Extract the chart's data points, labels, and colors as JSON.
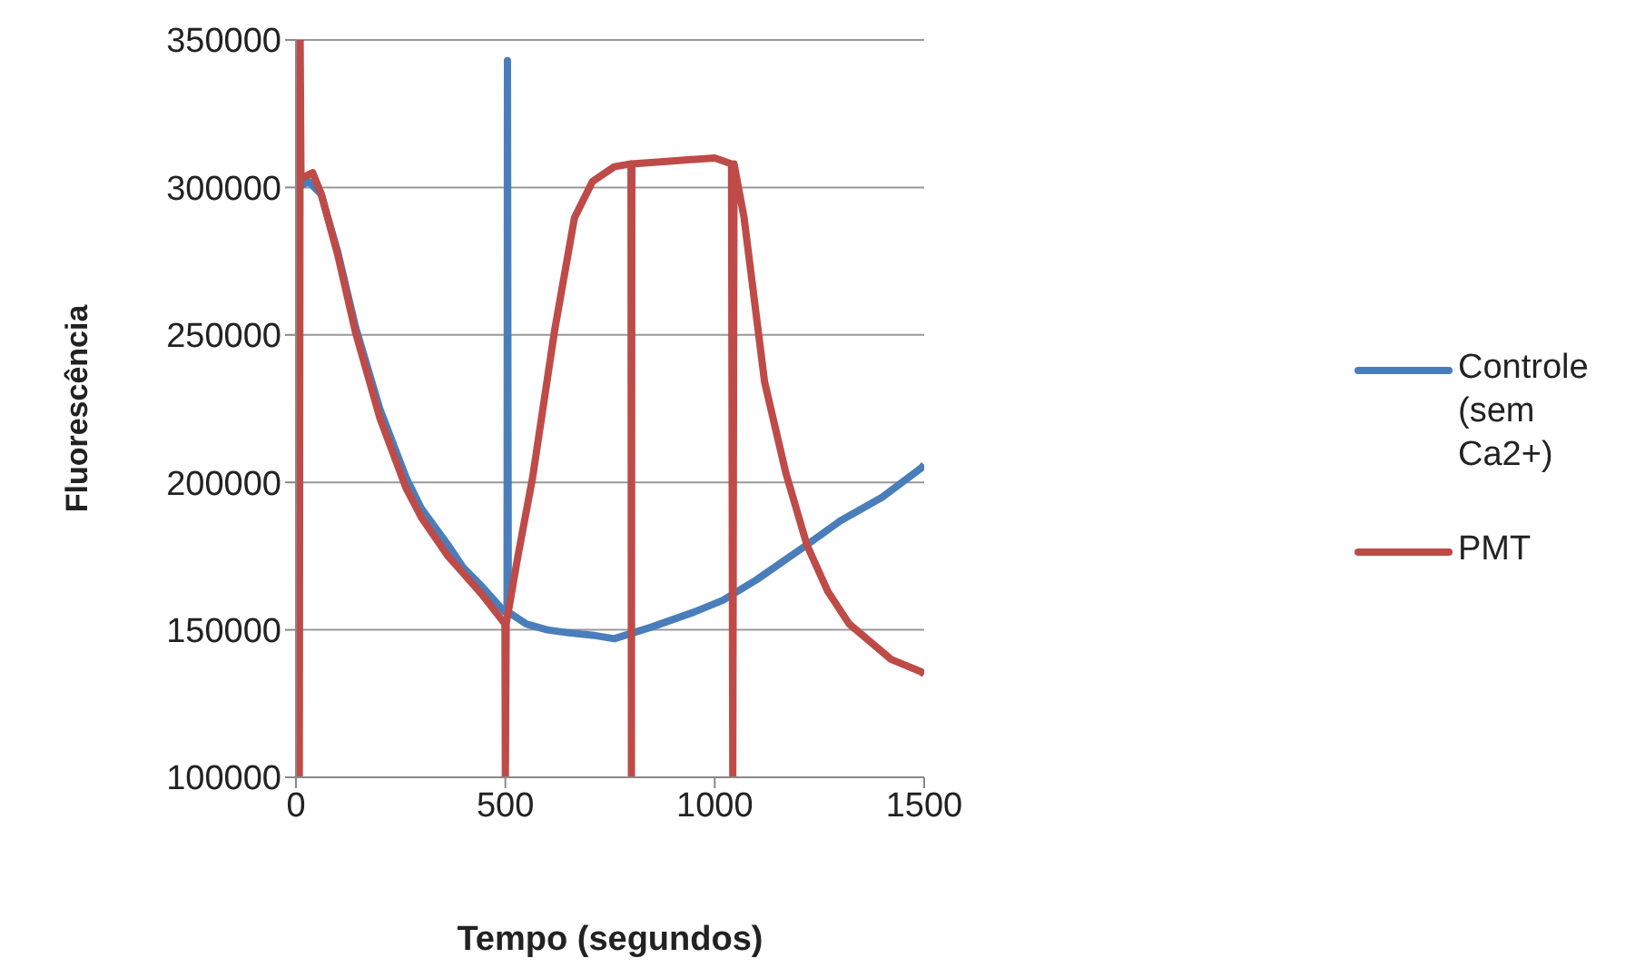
{
  "chart_data": {
    "type": "line",
    "xlabel": "Tempo (segundos)",
    "ylabel": "Fluorescência",
    "xlim": [
      0,
      1500
    ],
    "xticks": [
      0,
      500,
      1000,
      1500
    ],
    "ylim": [
      100000,
      350000
    ],
    "yticks": [
      100000,
      150000,
      200000,
      250000,
      300000,
      350000
    ],
    "grid": "y",
    "legend": "right",
    "marker": "none",
    "line_style": "solid",
    "series": [
      {
        "name": "Controle (sem Ca2+)",
        "color": "#4a7ebb",
        "x": [
          0,
          3,
          4,
          30,
          60,
          100,
          142,
          200,
          263,
          300,
          363,
          400,
          444,
          499,
          504,
          505,
          507,
          550,
          600,
          650,
          717,
          760,
          850,
          950,
          1019,
          1100,
          1220,
          1300,
          1400,
          1494,
          1500
        ],
        "values": [
          100000,
          350000,
          300000,
          302000,
          297700,
          278000,
          252800,
          225000,
          201600,
          191000,
          178800,
          171000,
          164700,
          156000,
          156000,
          343000,
          156000,
          152000,
          150000,
          149000,
          148000,
          147000,
          151000,
          156000,
          160000,
          167000,
          178800,
          187000,
          195000,
          205000,
          206000
        ]
      },
      {
        "name": "PMT",
        "color": "#be4b48",
        "x": [
          8,
          10,
          12,
          40,
          60,
          100,
          142,
          200,
          263,
          300,
          363,
          444,
          499,
          500,
          502,
          530,
          565,
          617,
          665,
          708,
          760,
          800,
          801,
          802,
          900,
          1000,
          1040,
          1043,
          1046,
          1070,
          1119,
          1170,
          1220,
          1270,
          1321,
          1421,
          1494,
          1500
        ],
        "values": [
          100000,
          350000,
          303000,
          305000,
          298000,
          277000,
          251000,
          222000,
          198000,
          188000,
          175000,
          162000,
          152000,
          100000,
          152000,
          175000,
          201600,
          251000,
          289700,
          302000,
          307000,
          308000,
          100000,
          308000,
          309000,
          310000,
          308000,
          100000,
          308000,
          289700,
          234000,
          203000,
          178800,
          163000,
          152000,
          140000,
          135700,
          135000
        ]
      }
    ]
  }
}
